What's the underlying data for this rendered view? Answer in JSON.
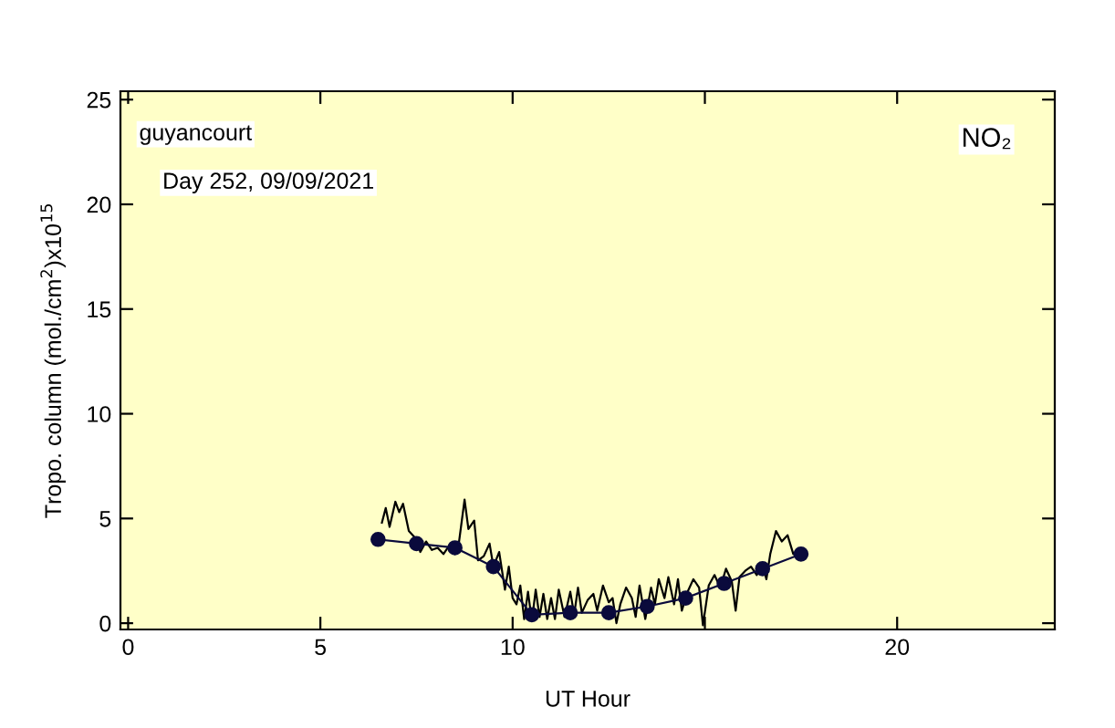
{
  "chart_data": {
    "type": "line",
    "xlabel": "UT Hour",
    "ylabel": "Tropo. column (mol./cm$^{2}$)x10$^{15}$",
    "annotations": [
      "guyancourt",
      "Day 252, 09/09/2021",
      "NO₂"
    ],
    "xlim": [
      -0.2,
      24.1
    ],
    "ylim": [
      -0.3,
      25.4
    ],
    "xticks": [
      0,
      5,
      10,
      {
        "value": 15,
        "label": null
      },
      20
    ],
    "yticks": [
      0,
      5,
      10,
      15,
      20,
      25
    ],
    "grid": false,
    "legend": false,
    "series": [
      {
        "color": "#000000",
        "marker": "none",
        "x": [
          6.6,
          6.7,
          6.8,
          6.95,
          7.05,
          7.15,
          7.3,
          7.5,
          7.6,
          7.75,
          7.9,
          8.05,
          8.2,
          8.35,
          8.5,
          8.6,
          8.75,
          8.85,
          9.0,
          9.1,
          9.25,
          9.4,
          9.5,
          9.65,
          9.8,
          9.9,
          10.0,
          10.1,
          10.2,
          10.3,
          10.4,
          10.5,
          10.6,
          10.7,
          10.8,
          10.9,
          11.0,
          11.1,
          11.2,
          11.35,
          11.5,
          11.6,
          11.7,
          11.8,
          11.95,
          12.1,
          12.2,
          12.35,
          12.5,
          12.6,
          12.7,
          12.8,
          12.95,
          13.1,
          13.2,
          13.3,
          13.45,
          13.6,
          13.7,
          13.8,
          13.95,
          14.05,
          14.2,
          14.3,
          14.4,
          14.55,
          14.7,
          14.85,
          14.95,
          15.1,
          15.25,
          15.4,
          15.55,
          15.7,
          15.8,
          15.9,
          16.05,
          16.2,
          16.35,
          16.5,
          16.6,
          16.7,
          16.85,
          17.0,
          17.15,
          17.3,
          17.5
        ],
        "values": [
          4.8,
          5.5,
          4.6,
          5.8,
          5.3,
          5.7,
          4.4,
          4.0,
          3.4,
          3.9,
          3.5,
          3.6,
          3.3,
          3.7,
          3.3,
          3.8,
          5.9,
          4.5,
          4.9,
          3.0,
          3.2,
          3.8,
          2.7,
          3.4,
          1.6,
          2.7,
          1.2,
          0.9,
          1.8,
          0.2,
          1.5,
          0.1,
          1.6,
          0.3,
          1.4,
          0.2,
          1.2,
          0.2,
          1.6,
          0.3,
          1.5,
          0.4,
          1.7,
          0.5,
          1.1,
          1.4,
          0.6,
          1.8,
          1.0,
          1.2,
          0.0,
          0.9,
          1.7,
          1.2,
          0.3,
          1.8,
          0.2,
          1.7,
          0.9,
          2.1,
          1.2,
          2.2,
          0.9,
          2.1,
          0.6,
          1.5,
          2.1,
          1.7,
          -0.1,
          1.8,
          2.3,
          1.7,
          2.6,
          2.0,
          0.6,
          2.2,
          2.5,
          2.7,
          2.3,
          2.8,
          2.1,
          3.3,
          4.4,
          3.9,
          4.2,
          3.3,
          3.3
        ]
      },
      {
        "color": "#0a0a3c",
        "marker": "circle",
        "x": [
          6.5,
          7.5,
          8.5,
          9.5,
          10.5,
          11.5,
          12.5,
          13.5,
          14.5,
          15.5,
          16.5,
          17.5
        ],
        "values": [
          4.0,
          3.8,
          3.6,
          2.7,
          0.4,
          0.5,
          0.5,
          0.8,
          1.2,
          1.9,
          2.6,
          3.3
        ]
      }
    ]
  }
}
